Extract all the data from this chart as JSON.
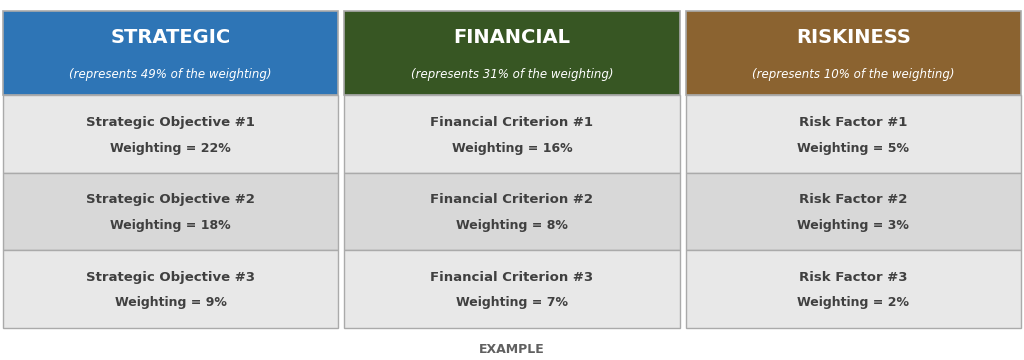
{
  "columns": [
    {
      "header": "STRATEGIC",
      "subheader": "(represents 49% of the weighting)",
      "header_color": "#2E75B6",
      "rows": [
        {
          "line1": "Strategic Objective #1",
          "line2": "Weighting = 22%"
        },
        {
          "line1": "Strategic Objective #2",
          "line2": "Weighting = 18%"
        },
        {
          "line1": "Strategic Objective #3",
          "line2": "Weighting = 9%"
        }
      ]
    },
    {
      "header": "FINANCIAL",
      "subheader": "(represents 31% of the weighting)",
      "header_color": "#375623",
      "rows": [
        {
          "line1": "Financial Criterion #1",
          "line2": "Weighting = 16%"
        },
        {
          "line1": "Financial Criterion #2",
          "line2": "Weighting = 8%"
        },
        {
          "line1": "Financial Criterion #3",
          "line2": "Weighting = 7%"
        }
      ]
    },
    {
      "header": "RISKINESS",
      "subheader": "(represents 10% of the weighting)",
      "header_color": "#8B6330",
      "rows": [
        {
          "line1": "Risk Factor #1",
          "line2": "Weighting = 5%"
        },
        {
          "line1": "Risk Factor #2",
          "line2": "Weighting = 3%"
        },
        {
          "line1": "Risk Factor #3",
          "line2": "Weighting = 2%"
        }
      ]
    }
  ],
  "row_bg_colors": [
    "#E8E8E8",
    "#D8D8D8",
    "#E8E8E8"
  ],
  "header_text_color": "#FFFFFF",
  "body_text_color": "#404040",
  "border_color": "#AAAAAA",
  "background_color": "#FFFFFF",
  "footer_text": "EXAMPLE",
  "footer_color": "#606060"
}
